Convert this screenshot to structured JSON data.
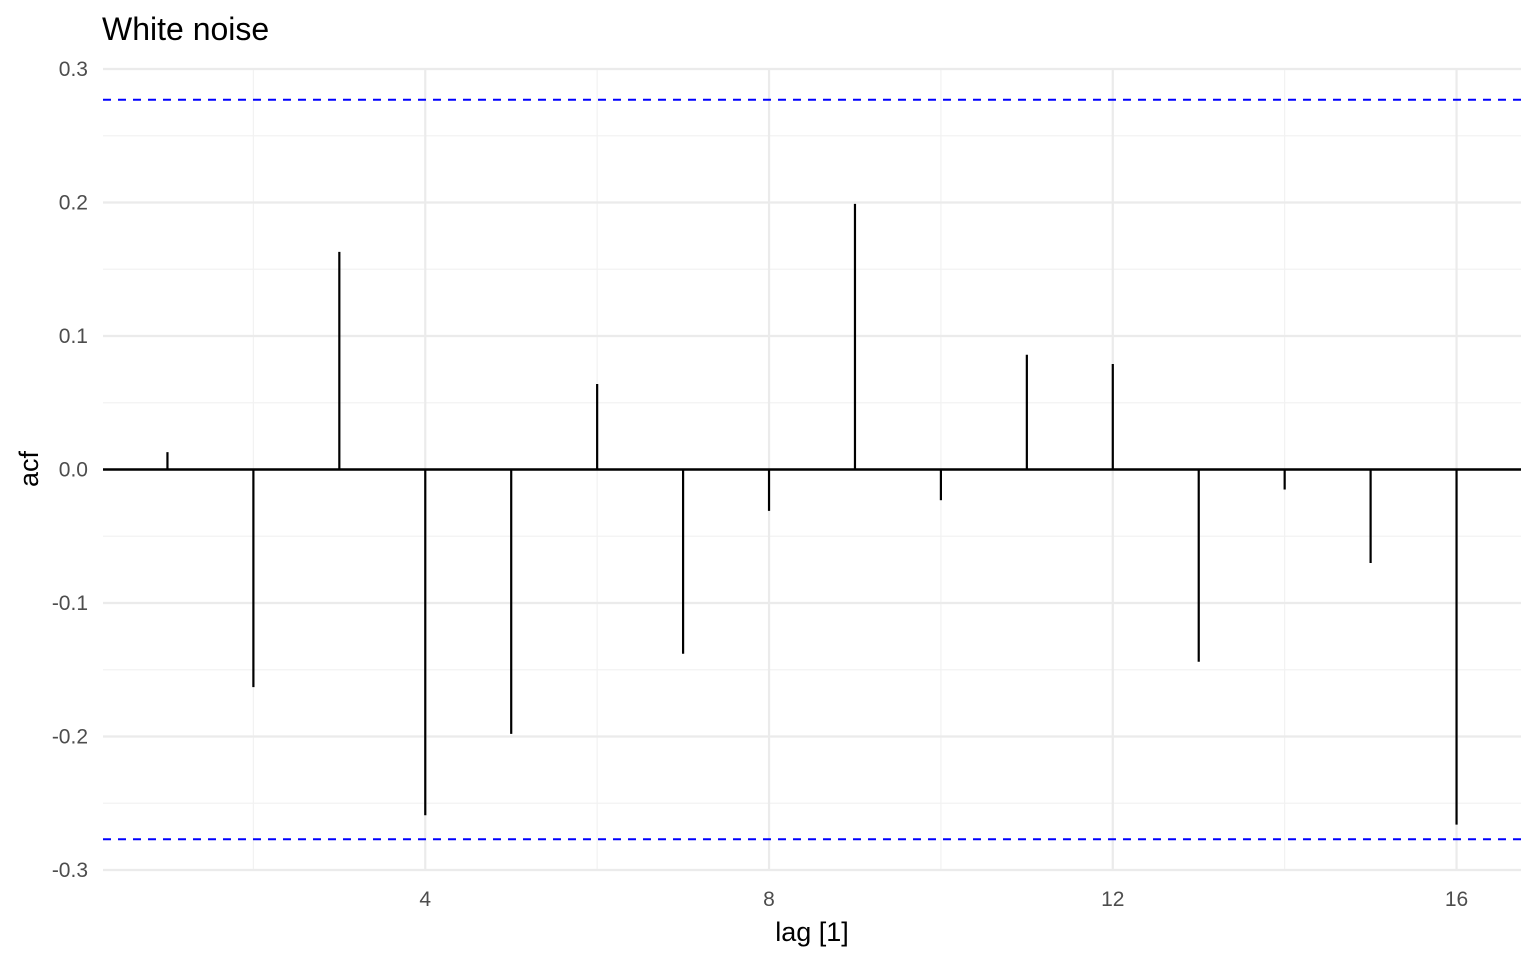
{
  "chart_data": {
    "type": "bar",
    "title": "White noise",
    "xlabel": "lag [1]",
    "ylabel": "acf",
    "x": [
      1,
      2,
      3,
      4,
      5,
      6,
      7,
      8,
      9,
      10,
      11,
      12,
      13,
      14,
      15,
      16
    ],
    "series": [
      {
        "values": [
          0.013,
          -0.163,
          0.163,
          -0.259,
          -0.198,
          0.064,
          -0.138,
          -0.031,
          0.199,
          -0.023,
          0.086,
          0.079,
          -0.144,
          -0.015,
          -0.07,
          -0.266
        ]
      }
    ],
    "xlim": [
      0.25,
      16.75
    ],
    "ylim": [
      -0.3,
      0.3
    ],
    "x_ticks": [
      4,
      8,
      12,
      16
    ],
    "x_tick_labels": [
      "4",
      "8",
      "12",
      "16"
    ],
    "y_ticks": [
      -0.3,
      -0.2,
      -0.1,
      0.0,
      0.1,
      0.2,
      0.3
    ],
    "y_tick_labels": [
      "-0.3",
      "-0.2",
      "-0.1",
      "0.0",
      "0.1",
      "0.2",
      "0.3"
    ],
    "confidence_bounds": [
      0.277,
      -0.277
    ],
    "grid": true,
    "legend": "none",
    "colors": {
      "bars": "#000000",
      "bounds": "#0000ff",
      "zero_line": "#000000",
      "grid_major": "#ebebeb",
      "grid_minor": "#f2f2f2",
      "tick_text": "#4d4d4d"
    }
  }
}
